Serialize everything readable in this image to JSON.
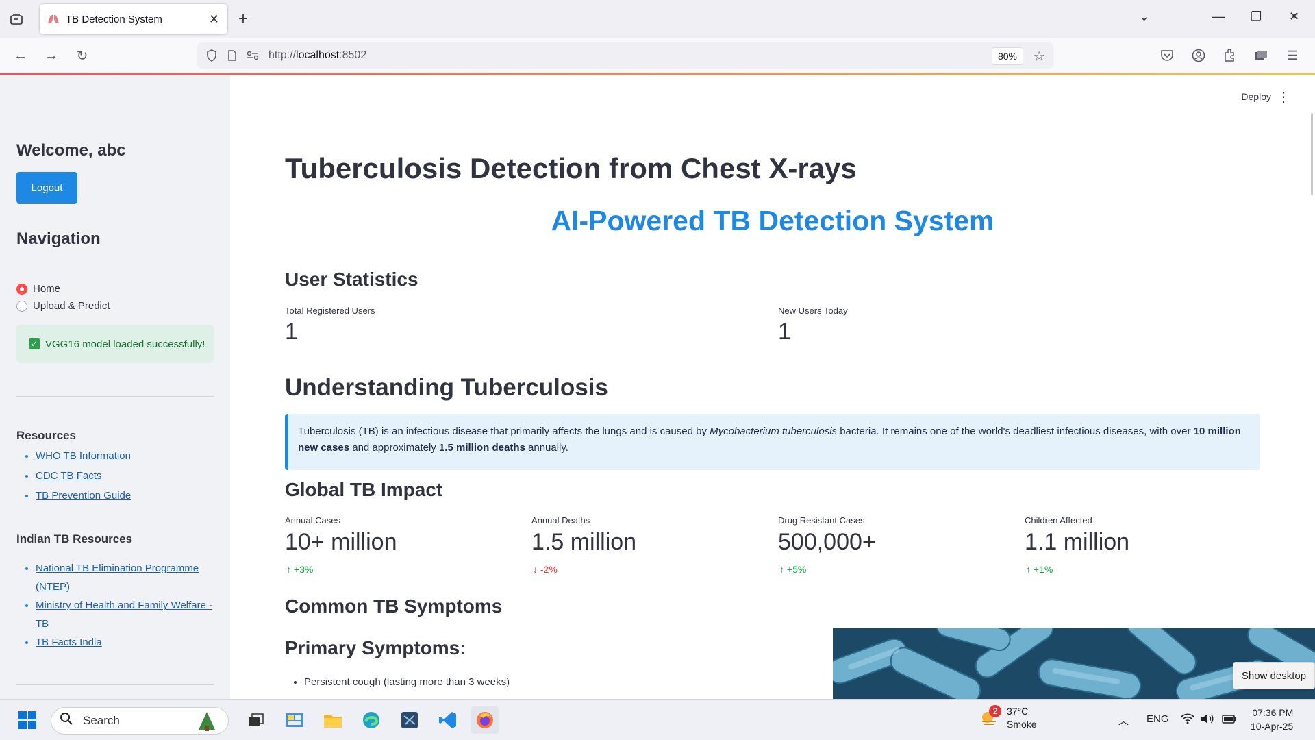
{
  "browser": {
    "tab_title": "TB Detection System",
    "url_prefix": "http://",
    "url_host": "localhost",
    "url_port": ":8502",
    "zoom": "80%"
  },
  "app": {
    "deploy_label": "Deploy"
  },
  "sidebar": {
    "welcome": "Welcome, abc",
    "logout_label": "Logout",
    "nav_heading": "Navigation",
    "nav_options": [
      {
        "label": "Home",
        "selected": true
      },
      {
        "label": "Upload & Predict",
        "selected": false
      }
    ],
    "success_message": "VGG16 model loaded successfully!",
    "resources_heading": "Resources",
    "resources": [
      "WHO TB Information",
      "CDC TB Facts",
      "TB Prevention Guide"
    ],
    "indian_heading": "Indian TB Resources",
    "indian_resources": [
      "National TB Elimination Programme (NTEP)",
      "Ministry of Health and Family Welfare - TB",
      "TB Facts India"
    ]
  },
  "main": {
    "title": "Tuberculosis Detection from Chest X-rays",
    "subtitle": "AI-Powered TB Detection System",
    "user_stats_heading": "User Statistics",
    "user_stats": [
      {
        "label": "Total Registered Users",
        "value": "1"
      },
      {
        "label": "New Users Today",
        "value": "1"
      }
    ],
    "understanding_heading": "Understanding Tuberculosis",
    "info_part1": "Tuberculosis (TB) is an infectious disease that primarily affects the lungs and is caused by ",
    "info_italic": "Mycobacterium tuberculosis",
    "info_part2": " bacteria. It remains one of the world's deadliest infectious diseases, with over ",
    "info_bold1": "10 million new cases",
    "info_part3": " and approximately ",
    "info_bold2": "1.5 million deaths",
    "info_part4": " annually.",
    "global_heading": "Global TB Impact",
    "global_metrics": [
      {
        "label": "Annual Cases",
        "value": "10+ million",
        "delta": "+3%",
        "direction": "up"
      },
      {
        "label": "Annual Deaths",
        "value": "1.5 million",
        "delta": "-2%",
        "direction": "down"
      },
      {
        "label": "Drug Resistant Cases",
        "value": "500,000+",
        "delta": "+5%",
        "direction": "up"
      },
      {
        "label": "Children Affected",
        "value": "1.1 million",
        "delta": "+1%",
        "direction": "up"
      }
    ],
    "symptoms_heading": "Common TB Symptoms",
    "primary_heading": "Primary Symptoms:",
    "primary_symptoms": [
      "Persistent cough (lasting more than 3 weeks)"
    ]
  },
  "overlay": {
    "show_desktop": "Show desktop"
  },
  "taskbar": {
    "search_placeholder": "Search",
    "weather_badge": "2",
    "temperature": "37°C",
    "weather_text": "Smoke",
    "language": "ENG",
    "time": "07:36 PM",
    "date": "10-Apr-25"
  }
}
